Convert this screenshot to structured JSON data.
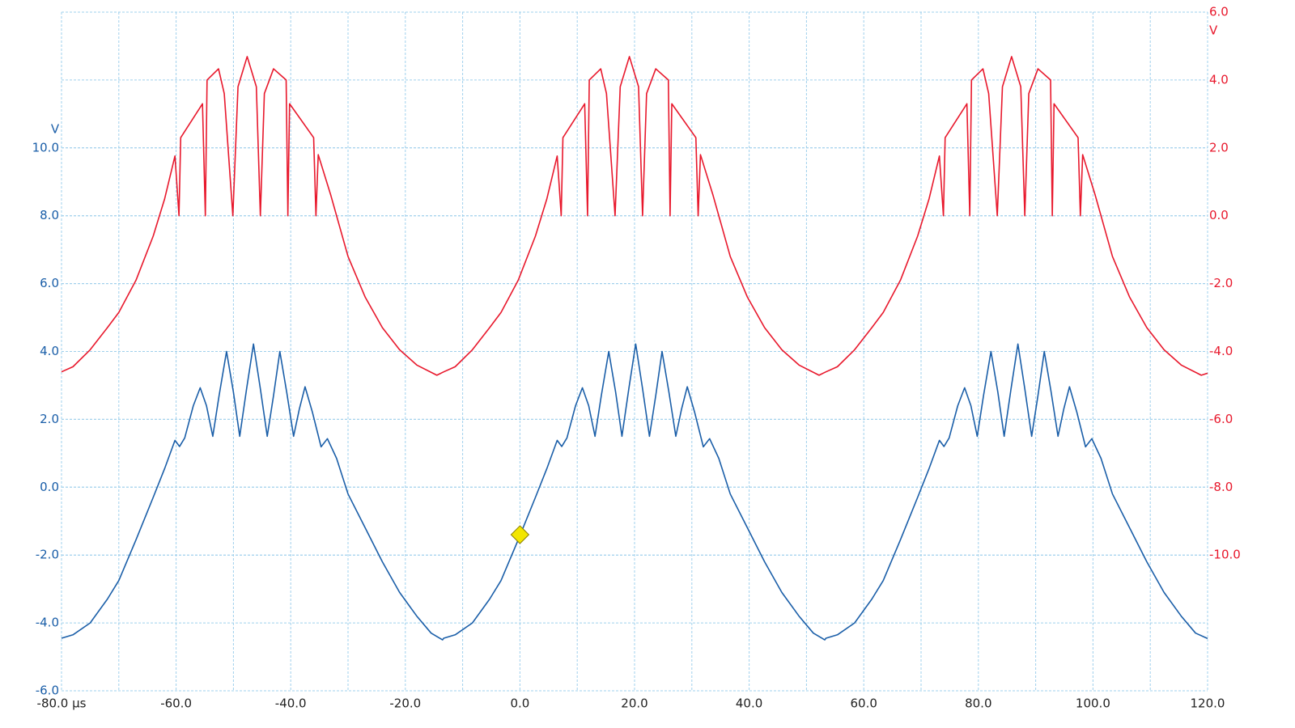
{
  "chart_data": {
    "type": "line",
    "xlim": [
      -80,
      120
    ],
    "ylim": [
      -6,
      14
    ],
    "y2lim": [
      -14,
      6
    ],
    "xticks": [
      {
        "value": -80,
        "label": "-80.0 µs"
      },
      {
        "value": -60,
        "label": "-60.0"
      },
      {
        "value": -40,
        "label": "-40.0"
      },
      {
        "value": -20,
        "label": "-20.0"
      },
      {
        "value": 0,
        "label": "0.0"
      },
      {
        "value": 20,
        "label": "20.0"
      },
      {
        "value": 40,
        "label": "40.0"
      },
      {
        "value": 60,
        "label": "60.0"
      },
      {
        "value": 80,
        "label": "80.0"
      },
      {
        "value": 100,
        "label": "100.0"
      },
      {
        "value": 120,
        "label": "120.0"
      }
    ],
    "xminorticks": [
      -70,
      -50,
      -30,
      -10,
      10,
      30,
      50,
      70,
      90,
      110
    ],
    "yticks": [
      {
        "value": -6,
        "label": "-6.0"
      },
      {
        "value": -4,
        "label": "-4.0"
      },
      {
        "value": -2,
        "label": "-2.0"
      },
      {
        "value": 0,
        "label": "0.0"
      },
      {
        "value": 2,
        "label": "2.0"
      },
      {
        "value": 4,
        "label": "4.0"
      },
      {
        "value": 6,
        "label": "6.0"
      },
      {
        "value": 8,
        "label": "8.0"
      },
      {
        "value": 10,
        "label": "10.0"
      }
    ],
    "y2ticks": [
      {
        "value": 6,
        "label": "6.0"
      },
      {
        "value": 4,
        "label": "4.0"
      },
      {
        "value": 2,
        "label": "2.0"
      },
      {
        "value": 0,
        "label": "0.0"
      },
      {
        "value": -2,
        "label": "-2.0"
      },
      {
        "value": -4,
        "label": "-4.0"
      },
      {
        "value": -6,
        "label": "-6.0"
      },
      {
        "value": -8,
        "label": "-8.0"
      },
      {
        "value": -10,
        "label": "-10.0"
      }
    ],
    "yunit": "V",
    "y2unit": "V",
    "grid": true,
    "grid_color": "#9fd0ec",
    "series": [
      {
        "color": "#1a5ea8",
        "axis": "y",
        "x": [
          -80,
          -78,
          -75,
          -72,
          -70,
          -67,
          -64,
          -62,
          -60.2,
          -59.4,
          -58.5,
          -57,
          -55.8,
          -54.7,
          -53.6,
          -52.5,
          -51.2,
          -50,
          -48.9,
          -47.7,
          -46.5,
          -45.3,
          -44.1,
          -43,
          -41.9,
          -40.7,
          -39.5,
          -38.5,
          -37.5,
          -36.2,
          -34.7,
          -33.6,
          -32,
          -30,
          -27,
          -24,
          -21,
          -18,
          -15.5,
          -13.5,
          -13.3,
          -11.3,
          -8.3,
          -5.3,
          -3.3,
          -0.3,
          2.7,
          4.7,
          6.5,
          7.3,
          8.2,
          9.7,
          10.9,
          12,
          13.1,
          14.2,
          15.5,
          16.7,
          17.8,
          19,
          20.2,
          21.4,
          22.6,
          23.7,
          24.8,
          26,
          27.2,
          28.2,
          29.2,
          30.5,
          32,
          33.1,
          34.7,
          36.7,
          39.7,
          42.7,
          45.7,
          48.7,
          51.2,
          53.2,
          53.4,
          55.4,
          58.4,
          61.4,
          63.4,
          66.4,
          69.4,
          71.4,
          73.2,
          74,
          74.9,
          76.4,
          77.6,
          78.7,
          79.8,
          80.9,
          82.2,
          83.4,
          84.5,
          85.7,
          86.9,
          88.1,
          89.3,
          90.4,
          91.5,
          92.7,
          93.9,
          94.9,
          95.9,
          97.2,
          98.7,
          99.8,
          101.4,
          103.4,
          106.4,
          109.4,
          112.4,
          115.4,
          117.9,
          120
        ],
        "values": [
          -4.45,
          -4.35,
          -4.0,
          -3.3,
          -2.75,
          -1.55,
          -0.3,
          0.55,
          1.38,
          1.2,
          1.45,
          2.4,
          2.93,
          2.4,
          1.5,
          2.7,
          4.0,
          2.8,
          1.5,
          2.9,
          4.22,
          2.9,
          1.5,
          2.7,
          4.0,
          2.8,
          1.5,
          2.3,
          2.96,
          2.2,
          1.19,
          1.43,
          0.85,
          -0.2,
          -1.2,
          -2.2,
          -3.1,
          -3.8,
          -4.3,
          -4.5,
          -4.45,
          -4.35,
          -4.0,
          -3.3,
          -2.75,
          -1.55,
          -0.3,
          0.55,
          1.38,
          1.2,
          1.45,
          2.4,
          2.93,
          2.4,
          1.5,
          2.7,
          4.0,
          2.8,
          1.5,
          2.9,
          4.22,
          2.9,
          1.5,
          2.7,
          4.0,
          2.8,
          1.5,
          2.3,
          2.96,
          2.2,
          1.19,
          1.43,
          0.85,
          -0.2,
          -1.2,
          -2.2,
          -3.1,
          -3.8,
          -4.3,
          -4.5,
          -4.45,
          -4.35,
          -4.0,
          -3.3,
          -2.75,
          -1.55,
          -0.3,
          0.55,
          1.38,
          1.2,
          1.45,
          2.4,
          2.93,
          2.4,
          1.5,
          2.7,
          4.0,
          2.8,
          1.5,
          2.9,
          4.22,
          2.9,
          1.5,
          2.7,
          4.0,
          2.8,
          1.5,
          2.3,
          2.96,
          2.2,
          1.19,
          1.43,
          0.85,
          -0.2,
          -1.2,
          -2.2,
          -3.1,
          -3.8,
          -4.3,
          -4.46
        ]
      },
      {
        "color": "#e8182c",
        "axis": "y2",
        "x": [
          -80,
          -78,
          -75,
          -72,
          -70,
          -67,
          -64,
          -62,
          -60.2,
          -59.5,
          -59.2,
          -55.4,
          -54.9,
          -54.6,
          -52.6,
          -51.6,
          -50.1,
          -49.2,
          -47.6,
          -46.0,
          -45.3,
          -44.6,
          -43.0,
          -40.8,
          -40.5,
          -40.2,
          -36.0,
          -35.6,
          -35.2,
          -33,
          -30,
          -27,
          -24,
          -21,
          -18,
          -14.5,
          -13.3,
          -11.3,
          -8.3,
          -5.3,
          -3.3,
          -0.3,
          2.7,
          4.7,
          6.5,
          7.2,
          7.5,
          11.3,
          11.8,
          12.1,
          14.1,
          15.1,
          16.6,
          17.5,
          19.1,
          20.7,
          21.4,
          22.1,
          23.7,
          25.9,
          26.2,
          26.5,
          30.7,
          31.1,
          31.5,
          33.7,
          36.7,
          39.7,
          42.7,
          45.7,
          48.7,
          52.2,
          53.4,
          55.4,
          58.4,
          61.4,
          63.4,
          66.4,
          69.4,
          71.4,
          73.2,
          73.9,
          74.2,
          78,
          78.5,
          78.8,
          80.8,
          81.8,
          83.3,
          84.2,
          85.8,
          87.4,
          88.1,
          88.8,
          90.4,
          92.6,
          92.9,
          93.2,
          97.4,
          97.8,
          98.2,
          100.4,
          103.4,
          106.4,
          109.4,
          112.4,
          115.4,
          118.9,
          120
        ],
        "values": [
          -4.6,
          -4.45,
          -3.95,
          -3.3,
          -2.85,
          -1.9,
          -0.6,
          0.5,
          1.76,
          0,
          2.3,
          3.3,
          0,
          4.0,
          4.33,
          3.6,
          0,
          3.8,
          4.69,
          3.8,
          0,
          3.6,
          4.33,
          4.0,
          0,
          3.3,
          2.3,
          0,
          1.8,
          0.6,
          -1.2,
          -2.4,
          -3.3,
          -3.95,
          -4.4,
          -4.7,
          -4.6,
          -4.45,
          -3.95,
          -3.3,
          -2.85,
          -1.9,
          -0.6,
          0.5,
          1.76,
          0,
          2.3,
          3.3,
          0,
          4.0,
          4.33,
          3.6,
          0,
          3.8,
          4.69,
          3.8,
          0,
          3.6,
          4.33,
          4.0,
          0,
          3.3,
          2.3,
          0,
          1.8,
          0.6,
          -1.2,
          -2.4,
          -3.3,
          -3.95,
          -4.4,
          -4.7,
          -4.6,
          -4.45,
          -3.95,
          -3.3,
          -2.85,
          -1.9,
          -0.6,
          0.5,
          1.76,
          0,
          2.3,
          3.3,
          0,
          4.0,
          4.33,
          3.6,
          0,
          3.8,
          4.69,
          3.8,
          0,
          3.6,
          4.33,
          4.0,
          0,
          3.3,
          2.3,
          0,
          1.8,
          0.6,
          -1.2,
          -2.4,
          -3.3,
          -3.95,
          -4.4,
          -4.7,
          -4.64
        ]
      }
    ],
    "marker": {
      "x": 0,
      "y": -1.4,
      "color": "#f2e600"
    }
  }
}
